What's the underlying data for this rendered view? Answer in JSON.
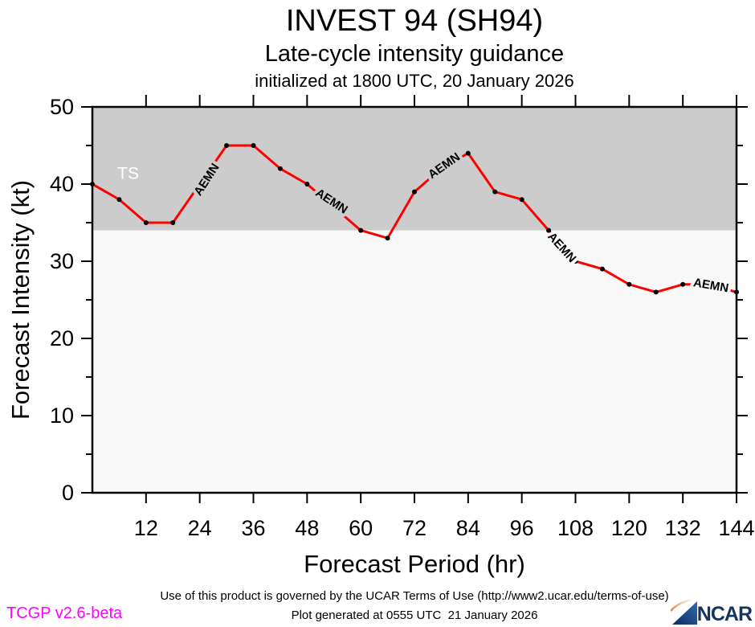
{
  "header": {
    "title": "INVEST 94 (SH94)",
    "subtitle": "Late-cycle intensity guidance",
    "init_line": "initialized at 1800 UTC, 20 January 2026"
  },
  "footer": {
    "terms": "Use of this product is governed by the UCAR Terms of Use (http://www2.ucar.edu/terms-of-use)",
    "version": "TCGP v2.6-beta",
    "generated": "Plot generated at 0555 UTC  21 January 2026",
    "logo_text": "NCAR"
  },
  "colors": {
    "band_ts": "#cccccc",
    "band_below": "#f9f9f9",
    "line": "#ff0000",
    "marker": "#000000",
    "ts_label": "#ffffff",
    "axis": "#000000",
    "version_text": "#ff00ff",
    "logo_navy": "#16355e",
    "logo_blue": "#2f6db5",
    "logo_orange": "#e87722"
  },
  "chart_data": {
    "type": "line",
    "title": "INVEST 94 (SH94)",
    "subtitle": "Late-cycle intensity guidance",
    "initialized": "initialized at 1800 UTC, 20 January 2026",
    "xlabel": "Forecast Period (hr)",
    "ylabel": "Forecast Intensity (kt)",
    "xlim": [
      0,
      144
    ],
    "ylim": [
      0,
      50
    ],
    "xticks": [
      12,
      24,
      36,
      48,
      60,
      72,
      84,
      96,
      108,
      120,
      132,
      144
    ],
    "yticks_major": [
      0,
      10,
      20,
      30,
      40,
      50
    ],
    "yticks_minor": [
      5,
      15,
      25,
      35,
      45
    ],
    "grid": false,
    "legend": false,
    "ts_threshold_kt": 34,
    "ts_zone_label": "TS",
    "series": [
      {
        "name": "AEMN",
        "color": "#ff0000",
        "x_hours": [
          0,
          6,
          12,
          18,
          24,
          30,
          36,
          42,
          48,
          54,
          60,
          66,
          72,
          78,
          84,
          90,
          96,
          102,
          108,
          114,
          120,
          126,
          132,
          138,
          144
        ],
        "y_kt": [
          40,
          38,
          35,
          35,
          40,
          45,
          45,
          42,
          40,
          37,
          34,
          33,
          39,
          42,
          44,
          39,
          38,
          34,
          30,
          29,
          27,
          26,
          27,
          27,
          26
        ],
        "markers_hidden_at": [
          24,
          54,
          78,
          138
        ],
        "label_positions": [
          {
            "hr": 25.5,
            "kt": 40.6,
            "rotate": -57
          },
          {
            "hr": 53.5,
            "kt": 37.8,
            "rotate": 33
          },
          {
            "hr": 78.6,
            "kt": 42.4,
            "rotate": -35
          },
          {
            "hr": 105.0,
            "kt": 31.8,
            "rotate": 48
          },
          {
            "hr": 138.3,
            "kt": 26.9,
            "rotate": 10
          }
        ]
      }
    ]
  }
}
